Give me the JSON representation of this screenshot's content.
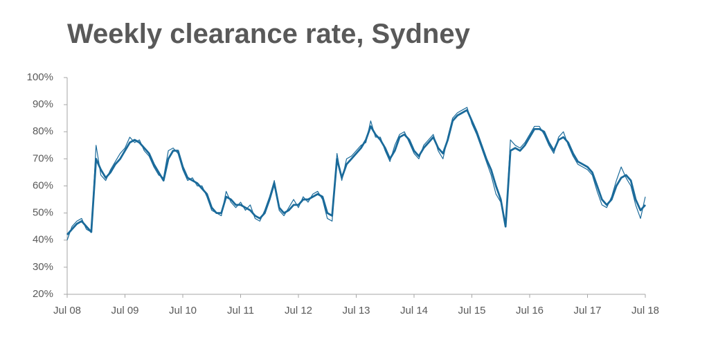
{
  "chart_data": {
    "type": "line",
    "title": "Weekly clearance rate, Sydney",
    "x": [
      2008.5,
      2008.583,
      2008.667,
      2008.75,
      2008.833,
      2008.917,
      2009,
      2009.083,
      2009.167,
      2009.25,
      2009.333,
      2009.417,
      2009.5,
      2009.583,
      2009.667,
      2009.75,
      2009.833,
      2009.917,
      2010,
      2010.083,
      2010.167,
      2010.25,
      2010.333,
      2010.417,
      2010.5,
      2010.583,
      2010.667,
      2010.75,
      2010.833,
      2010.917,
      2011,
      2011.083,
      2011.167,
      2011.25,
      2011.333,
      2011.417,
      2011.5,
      2011.583,
      2011.667,
      2011.75,
      2011.833,
      2011.917,
      2012,
      2012.083,
      2012.167,
      2012.25,
      2012.333,
      2012.417,
      2012.5,
      2012.583,
      2012.667,
      2012.75,
      2012.833,
      2012.917,
      2013,
      2013.083,
      2013.167,
      2013.25,
      2013.333,
      2013.417,
      2013.5,
      2013.583,
      2013.667,
      2013.75,
      2013.833,
      2013.917,
      2014,
      2014.083,
      2014.167,
      2014.25,
      2014.333,
      2014.417,
      2014.5,
      2014.583,
      2014.667,
      2014.75,
      2014.833,
      2014.917,
      2015,
      2015.083,
      2015.167,
      2015.25,
      2015.333,
      2015.417,
      2015.5,
      2015.583,
      2015.667,
      2015.75,
      2015.833,
      2015.917,
      2016,
      2016.083,
      2016.167,
      2016.25,
      2016.333,
      2016.417,
      2016.5,
      2016.583,
      2016.667,
      2016.75,
      2016.833,
      2016.917,
      2017,
      2017.083,
      2017.167,
      2017.25,
      2017.333,
      2017.417,
      2017.5,
      2017.583,
      2017.667,
      2017.75,
      2017.833,
      2017.917,
      2018,
      2018.083,
      2018.167,
      2018.25,
      2018.333,
      2018.417,
      2018.5
    ],
    "series": [
      {
        "color": "#1a6a9a",
        "width": 1.2,
        "values": [
          40,
          45,
          47,
          48,
          44,
          43,
          75,
          64,
          62,
          66,
          69,
          72,
          74,
          78,
          76,
          77,
          73,
          71,
          67,
          64,
          63,
          73,
          74,
          72,
          66,
          62,
          63,
          60,
          60,
          56,
          51,
          50,
          49,
          58,
          54,
          52,
          54,
          51,
          53,
          48,
          47,
          51,
          56,
          62,
          51,
          49,
          52,
          55,
          52,
          56,
          54,
          57,
          58,
          55,
          48,
          47,
          72,
          62,
          70,
          71,
          73,
          75,
          76,
          84,
          78,
          78,
          73,
          69,
          75,
          79,
          80,
          76,
          72,
          70,
          75,
          77,
          79,
          73,
          70,
          78,
          85,
          87,
          88,
          89,
          83,
          79,
          74,
          69,
          64,
          57,
          54,
          45,
          77,
          75,
          74,
          76,
          79,
          82,
          82,
          79,
          75,
          72,
          78,
          80,
          75,
          71,
          68,
          67,
          66,
          64,
          58,
          53,
          52,
          56,
          62,
          67,
          63,
          60,
          53,
          48,
          56
        ]
      },
      {
        "color": "#1a6a9a",
        "width": 2.8,
        "values": [
          42,
          44,
          46,
          47,
          45,
          43,
          70,
          66,
          63,
          65,
          68,
          70,
          73,
          76,
          77,
          76,
          74,
          72,
          68,
          65,
          62,
          70,
          73,
          73,
          67,
          63,
          62,
          61,
          59,
          57,
          52,
          50,
          50,
          56,
          55,
          53,
          53,
          52,
          51,
          49,
          48,
          50,
          55,
          61,
          52,
          50,
          51,
          53,
          53,
          55,
          55,
          56,
          57,
          56,
          50,
          49,
          70,
          63,
          68,
          70,
          72,
          74,
          77,
          82,
          79,
          77,
          74,
          70,
          73,
          78,
          79,
          77,
          73,
          71,
          74,
          76,
          78,
          74,
          72,
          77,
          84,
          86,
          87,
          88,
          84,
          80,
          75,
          70,
          66,
          60,
          55,
          45,
          73,
          74,
          73,
          75,
          78,
          81,
          81,
          80,
          76,
          73,
          77,
          78,
          76,
          72,
          69,
          68,
          67,
          65,
          60,
          55,
          53,
          55,
          60,
          63,
          64,
          62,
          55,
          51,
          53
        ]
      }
    ],
    "xlim": [
      2008.5,
      2018.5
    ],
    "xticks": [
      {
        "value": 2008.5,
        "label": "Jul 08"
      },
      {
        "value": 2009.5,
        "label": "Jul 09"
      },
      {
        "value": 2010.5,
        "label": "Jul 10"
      },
      {
        "value": 2011.5,
        "label": "Jul 11"
      },
      {
        "value": 2012.5,
        "label": "Jul 12"
      },
      {
        "value": 2013.5,
        "label": "Jul 13"
      },
      {
        "value": 2014.5,
        "label": "Jul 14"
      },
      {
        "value": 2015.5,
        "label": "Jul 15"
      },
      {
        "value": 2016.5,
        "label": "Jul 16"
      },
      {
        "value": 2017.5,
        "label": "Jul 17"
      },
      {
        "value": 2018.5,
        "label": "Jul 18"
      }
    ],
    "ylim": [
      20,
      100
    ],
    "yticks": [
      {
        "value": 20,
        "label": "20%"
      },
      {
        "value": 30,
        "label": "30%"
      },
      {
        "value": 40,
        "label": "40%"
      },
      {
        "value": 50,
        "label": "50%"
      },
      {
        "value": 60,
        "label": "60%"
      },
      {
        "value": 70,
        "label": "70%"
      },
      {
        "value": 80,
        "label": "80%"
      },
      {
        "value": 90,
        "label": "90%"
      },
      {
        "value": 100,
        "label": "100%"
      }
    ],
    "grid": false
  }
}
